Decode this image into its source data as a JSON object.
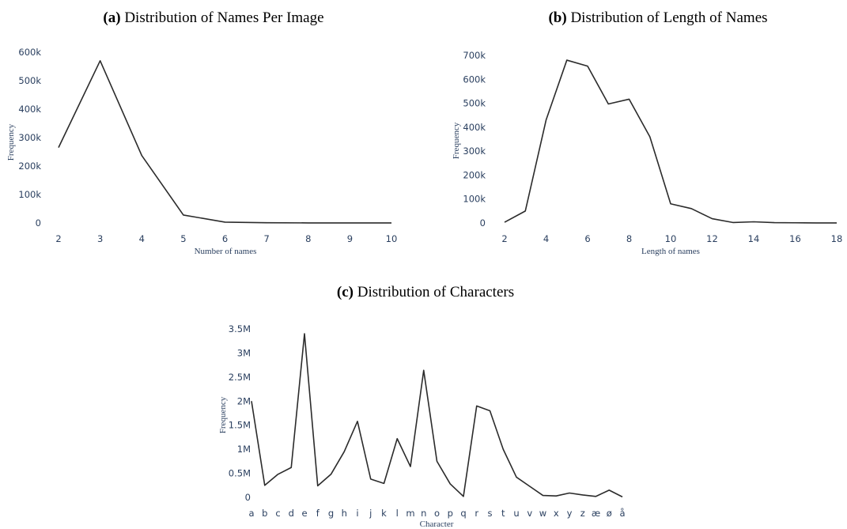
{
  "panels": [
    {
      "label": "(a)",
      "title": "Distribution of Names Per Image",
      "chart_data": {
        "type": "line",
        "title": "(a) Distribution of Names Per Image",
        "xlabel": "Number of names",
        "ylabel": "Frequency",
        "x": [
          2,
          3,
          4,
          5,
          6,
          7,
          8,
          9,
          10
        ],
        "y": [
          265000,
          570000,
          237000,
          28000,
          3000,
          800,
          300,
          100,
          50
        ],
        "xlim": [
          2,
          10
        ],
        "ylim": [
          0,
          600000
        ],
        "xticks": [
          "2",
          "3",
          "4",
          "5",
          "6",
          "7",
          "8",
          "9",
          "10"
        ],
        "yticks": [
          "0",
          "100k",
          "200k",
          "300k",
          "400k",
          "500k",
          "600k"
        ],
        "grid": false,
        "line_color": "#2b2b2b"
      }
    },
    {
      "label": "(b)",
      "title": "Distribution of Length of Names",
      "chart_data": {
        "type": "line",
        "title": "(b) Distribution of Length of Names",
        "xlabel": "Length of names",
        "ylabel": "Frequency",
        "x": [
          2,
          3,
          4,
          5,
          6,
          7,
          8,
          9,
          10,
          11,
          12,
          13,
          14,
          15,
          16,
          17,
          18
        ],
        "y": [
          3000,
          50000,
          430000,
          680000,
          655000,
          497000,
          517000,
          360000,
          80000,
          60000,
          18000,
          2000,
          5000,
          1500,
          800,
          300,
          100
        ],
        "xlim": [
          2,
          18
        ],
        "ylim": [
          0,
          700000
        ],
        "xticks": [
          "2",
          "4",
          "6",
          "8",
          "10",
          "12",
          "14",
          "16",
          "18"
        ],
        "yticks": [
          "0",
          "100k",
          "200k",
          "300k",
          "400k",
          "500k",
          "600k",
          "700k"
        ],
        "grid": false,
        "line_color": "#2b2b2b"
      }
    },
    {
      "label": "(c)",
      "title": "Distribution of Characters",
      "chart_data": {
        "type": "line",
        "title": "(c) Distribution of Characters",
        "xlabel": "Character",
        "ylabel": "Frequency",
        "categories": [
          "a",
          "b",
          "c",
          "d",
          "e",
          "f",
          "g",
          "h",
          "i",
          "j",
          "k",
          "l",
          "m",
          "n",
          "o",
          "p",
          "q",
          "r",
          "s",
          "t",
          "u",
          "v",
          "w",
          "x",
          "y",
          "z",
          "æ",
          "ø",
          "å"
        ],
        "y": [
          2000000,
          250000,
          480000,
          620000,
          3400000,
          240000,
          480000,
          950000,
          1580000,
          380000,
          290000,
          1220000,
          640000,
          2640000,
          750000,
          280000,
          20000,
          1900000,
          1800000,
          1000000,
          420000,
          230000,
          40000,
          30000,
          90000,
          50000,
          20000,
          150000,
          10000
        ],
        "ylim": [
          0,
          3500000
        ],
        "yticks": [
          "0",
          "0.5M",
          "1M",
          "1.5M",
          "2M",
          "2.5M",
          "3M",
          "3.5M"
        ],
        "grid": false,
        "line_color": "#2b2b2b"
      }
    }
  ]
}
